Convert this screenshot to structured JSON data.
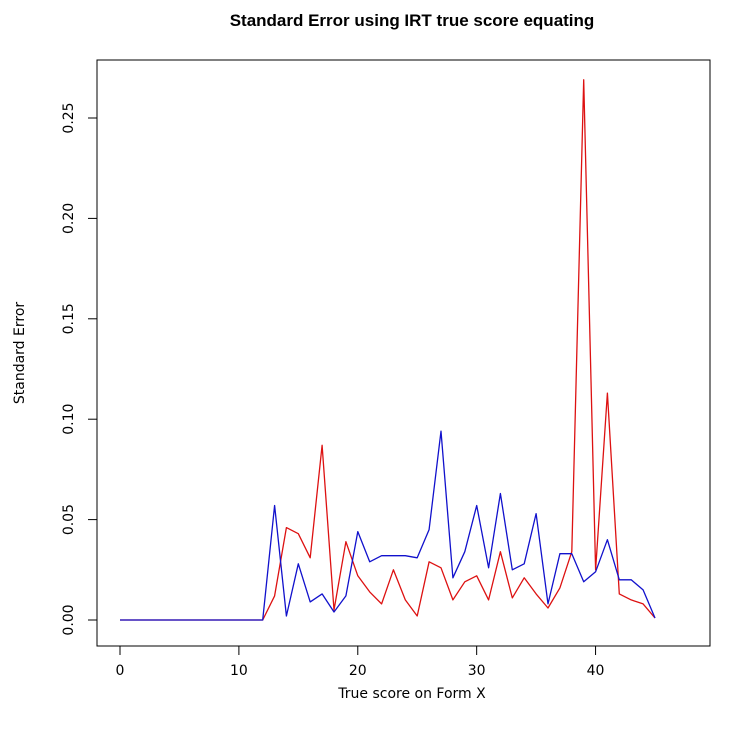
{
  "chart_data": {
    "type": "line",
    "title": "Standard Error using IRT true score equating",
    "xlabel": "True score on Form X",
    "ylabel": "Standard Error",
    "xlim": [
      0,
      45
    ],
    "ylim": [
      0,
      0.27
    ],
    "x_ticks": [
      0,
      10,
      20,
      30,
      40
    ],
    "x_tick_labels": [
      "0",
      "10",
      "20",
      "30",
      "40"
    ],
    "y_ticks": [
      0,
      0.05,
      0.1,
      0.15,
      0.2,
      0.25
    ],
    "y_tick_labels": [
      "0.00",
      "0.05",
      "0.10",
      "0.15",
      "0.20",
      "0.25"
    ],
    "grid": false,
    "x": [
      0,
      1,
      2,
      3,
      4,
      5,
      6,
      7,
      8,
      9,
      10,
      11,
      12,
      13,
      14,
      15,
      16,
      17,
      18,
      19,
      20,
      21,
      22,
      23,
      24,
      25,
      26,
      27,
      28,
      29,
      30,
      31,
      32,
      33,
      34,
      35,
      36,
      37,
      38,
      39,
      40,
      41,
      42,
      43,
      44,
      45
    ],
    "series": [
      {
        "color": "#dd1111",
        "values": [
          0,
          0,
          0,
          0,
          0,
          0,
          0,
          0,
          0,
          0,
          0,
          0,
          0,
          0.012,
          0.046,
          0.043,
          0.031,
          0.087,
          0.005,
          0.039,
          0.022,
          0.014,
          0.008,
          0.025,
          0.01,
          0.002,
          0.029,
          0.026,
          0.01,
          0.019,
          0.022,
          0.01,
          0.034,
          0.011,
          0.021,
          0.013,
          0.006,
          0.016,
          0.034,
          0.269,
          0.025,
          0.113,
          0.013,
          0.01,
          0.008,
          0.001
        ]
      },
      {
        "color": "#1111cc",
        "values": [
          0,
          0,
          0,
          0,
          0,
          0,
          0,
          0,
          0,
          0,
          0,
          0,
          0,
          0.057,
          0.002,
          0.028,
          0.009,
          0.013,
          0.004,
          0.012,
          0.044,
          0.029,
          0.032,
          0.032,
          0.032,
          0.031,
          0.045,
          0.094,
          0.021,
          0.034,
          0.057,
          0.026,
          0.063,
          0.025,
          0.028,
          0.053,
          0.008,
          0.033,
          0.033,
          0.019,
          0.024,
          0.04,
          0.02,
          0.02,
          0.015,
          0.001
        ]
      }
    ]
  }
}
